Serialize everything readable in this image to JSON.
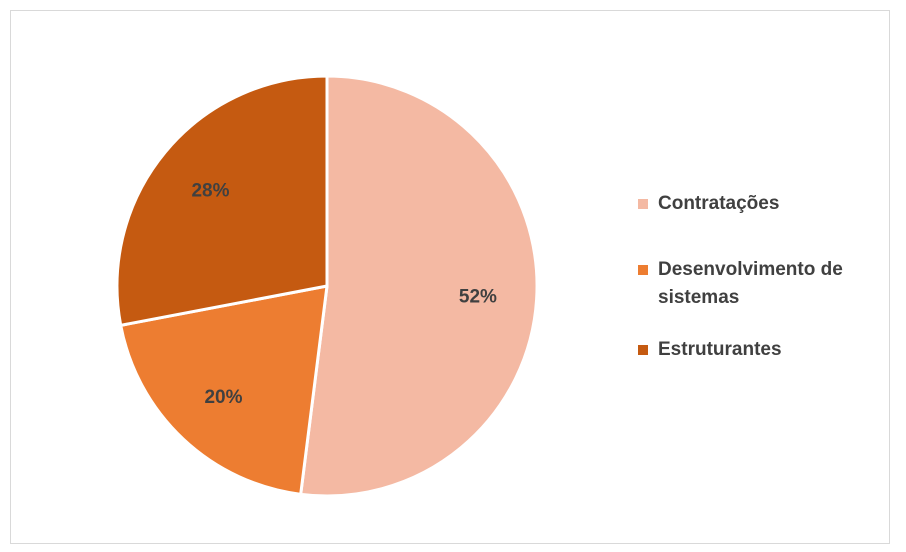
{
  "chart_data": {
    "type": "pie",
    "categories": [
      "Contratações",
      "Desenvolvimento de sistemas",
      "Estruturantes"
    ],
    "values": [
      52,
      20,
      28
    ],
    "labels": [
      "52%",
      "20%",
      "28%"
    ],
    "colors": [
      "#F4B9A3",
      "#ED7D31",
      "#C55A11"
    ],
    "title": "",
    "legend": "right"
  },
  "legend": {
    "items": [
      {
        "label": "Contratações",
        "color": "#F4B9A3"
      },
      {
        "label": "Desenvolvimento de sistemas",
        "color": "#ED7D31"
      },
      {
        "label": "Estruturantes",
        "color": "#C55A11"
      }
    ]
  }
}
